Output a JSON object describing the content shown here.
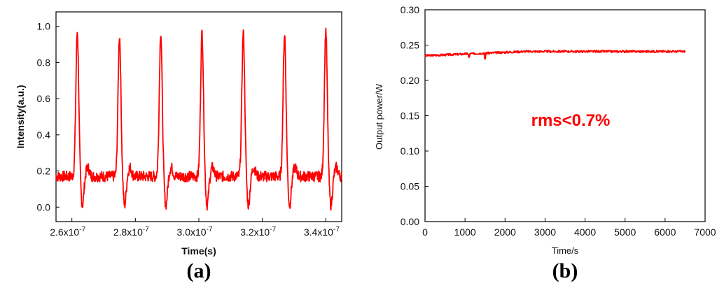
{
  "chart_data": [
    {
      "type": "line",
      "panel_label": "(a)",
      "xlabel": "Time(s)",
      "ylabel": "Intensity(a.u.)",
      "xlim": [
        2.55e-07,
        3.45e-07
      ],
      "ylim": [
        -0.08,
        1.08
      ],
      "x_ticks": [
        2.6e-07,
        2.8e-07,
        3e-07,
        3.2e-07,
        3.4e-07
      ],
      "x_tick_labels": [
        "2.6x10",
        "2.8x10",
        "3.0x10",
        "3.2x10",
        "3.4x10"
      ],
      "x_tick_exponent": "-7",
      "y_ticks": [
        0.0,
        0.2,
        0.4,
        0.6,
        0.8,
        1.0
      ],
      "y_tick_labels": [
        "0.0",
        "0.2",
        "0.4",
        "0.6",
        "0.8",
        "1.0"
      ],
      "grid": false,
      "line_color": "#ff0000",
      "pulses": [
        {
          "x": 2.617e-07,
          "peak": 0.97
        },
        {
          "x": 2.75e-07,
          "peak": 0.95
        },
        {
          "x": 2.88e-07,
          "peak": 0.97
        },
        {
          "x": 3.01e-07,
          "peak": 0.97
        },
        {
          "x": 3.14e-07,
          "peak": 0.97
        },
        {
          "x": 3.27e-07,
          "peak": 0.96
        },
        {
          "x": 3.4e-07,
          "peak": 0.98
        }
      ],
      "baseline": 0.17,
      "trough": 0.01
    },
    {
      "type": "line",
      "panel_label": "(b)",
      "xlabel": "Time/s",
      "ylabel": "Output power/W",
      "annotation": "rms<0.7%",
      "annotation_color": "#ff0000",
      "xlim": [
        0,
        7000
      ],
      "ylim": [
        0,
        0.3
      ],
      "x_ticks": [
        0,
        1000,
        2000,
        3000,
        4000,
        5000,
        6000,
        7000
      ],
      "x_tick_labels": [
        "0",
        "1000",
        "2000",
        "3000",
        "4000",
        "5000",
        "6000",
        "7000"
      ],
      "y_ticks": [
        0.0,
        0.05,
        0.1,
        0.15,
        0.2,
        0.25,
        0.3
      ],
      "y_tick_labels": [
        "0.00",
        "0.05",
        "0.10",
        "0.15",
        "0.20",
        "0.25",
        "0.30"
      ],
      "grid": false,
      "line_color": "#ff0000",
      "series_x_range": [
        0,
        6500
      ],
      "start_value": 0.235,
      "end_value": 0.241
    }
  ]
}
